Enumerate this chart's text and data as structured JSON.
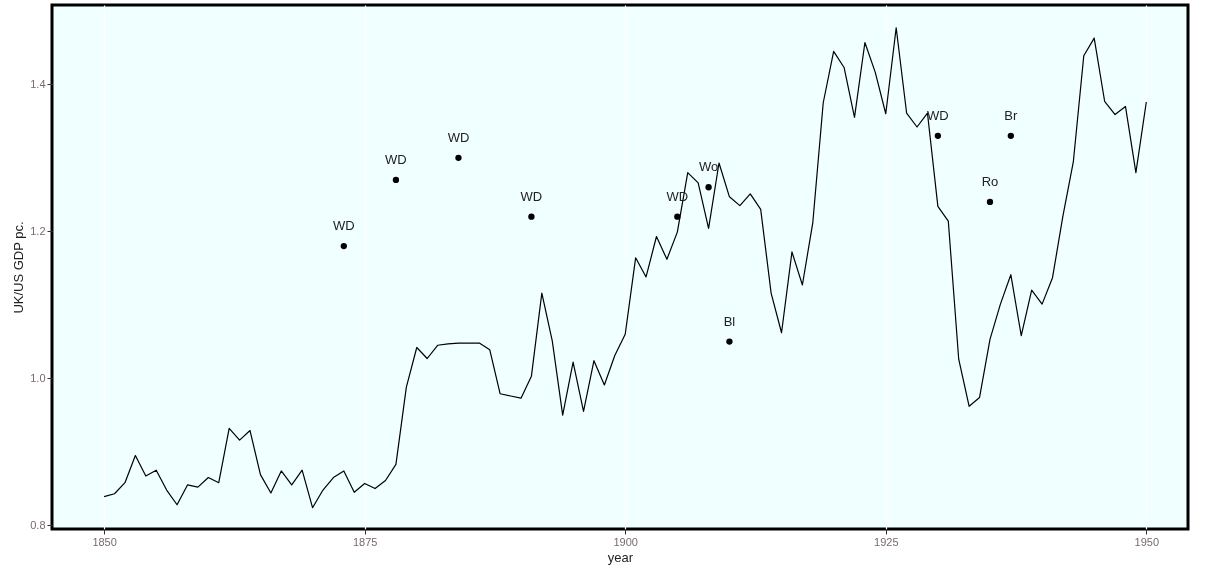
{
  "chart_data": {
    "type": "line",
    "xlabel": "year",
    "ylabel": "UK/US GDP pc.",
    "xlim": [
      1845,
      1954
    ],
    "xticks": [
      1850,
      1875,
      1900,
      1925,
      1950
    ],
    "ylim": [
      0.795,
      1.508
    ],
    "yticks": [
      0.8,
      {
        "value": 1,
        "label": "1.0"
      },
      1.2,
      1.4
    ],
    "grid": "x",
    "marker": "none",
    "line_style": "solid",
    "series": [
      {
        "color": "#000000",
        "x": [
          1850,
          1851,
          1852,
          1853,
          1854,
          1855,
          1856,
          1857,
          1858,
          1859,
          1860,
          1861,
          1862,
          1863,
          1864,
          1865,
          1866,
          1867,
          1868,
          1869,
          1870,
          1871,
          1872,
          1873,
          1874,
          1875,
          1876,
          1877,
          1878,
          1879,
          1880,
          1881,
          1882,
          1883,
          1884,
          1885,
          1886,
          1887,
          1888,
          1889,
          1890,
          1891,
          1892,
          1893,
          1894,
          1895,
          1896,
          1897,
          1898,
          1899,
          1900,
          1901,
          1902,
          1903,
          1904,
          1905,
          1906,
          1907,
          1908,
          1909,
          1910,
          1911,
          1912,
          1913,
          1914,
          1915,
          1916,
          1917,
          1918,
          1919,
          1920,
          1921,
          1922,
          1923,
          1924,
          1925,
          1926,
          1927,
          1928,
          1929,
          1930,
          1931,
          1932,
          1933,
          1934,
          1935,
          1936,
          1937,
          1938,
          1939,
          1940,
          1941,
          1942,
          1943,
          1944,
          1945,
          1946,
          1947,
          1948,
          1949,
          1950
        ],
        "values": [
          0.839,
          0.843,
          0.858,
          0.895,
          0.867,
          0.875,
          0.848,
          0.828,
          0.855,
          0.852,
          0.865,
          0.858,
          0.932,
          0.916,
          0.929,
          0.869,
          0.844,
          0.874,
          0.855,
          0.875,
          0.824,
          0.848,
          0.865,
          0.874,
          0.845,
          0.857,
          0.85,
          0.861,
          0.883,
          0.988,
          1.042,
          1.027,
          1.045,
          1.047,
          1.048,
          1.048,
          1.048,
          1.039,
          0.979,
          0.976,
          0.973,
          1.003,
          1.116,
          1.051,
          0.95,
          1.022,
          0.955,
          1.024,
          0.991,
          1.031,
          1.06,
          1.164,
          1.138,
          1.193,
          1.162,
          1.199,
          1.28,
          1.266,
          1.204,
          1.293,
          1.247,
          1.235,
          1.251,
          1.23,
          1.116,
          1.062,
          1.172,
          1.127,
          1.212,
          1.375,
          1.445,
          1.423,
          1.355,
          1.457,
          1.416,
          1.36,
          1.477,
          1.361,
          1.342,
          1.361,
          1.234,
          1.214,
          1.026,
          0.962,
          0.974,
          1.053,
          1.101,
          1.141,
          1.058,
          1.12,
          1.101,
          1.137,
          1.221,
          1.295,
          1.439,
          1.463,
          1.377,
          1.359,
          1.37,
          1.28,
          1.376
        ]
      },
      {
        "type": "scatter",
        "color": "#000000",
        "marker": "circle",
        "x": [
          1873,
          1878,
          1884,
          1891,
          1905,
          1908,
          1910,
          1930,
          1935,
          1937
        ],
        "values": [
          1.18,
          1.27,
          1.3,
          1.22,
          1.22,
          1.26,
          1.05,
          1.33,
          1.24,
          1.33
        ]
      }
    ],
    "annotations": [
      {
        "text": "WD",
        "x": 1873,
        "y": 1.18
      },
      {
        "text": "WD",
        "x": 1878,
        "y": 1.27
      },
      {
        "text": "WD",
        "x": 1884,
        "y": 1.3
      },
      {
        "text": "WD",
        "x": 1891,
        "y": 1.22
      },
      {
        "text": "WD",
        "x": 1905,
        "y": 1.22
      },
      {
        "text": "Wo",
        "x": 1908,
        "y": 1.26
      },
      {
        "text": "Bl",
        "x": 1910,
        "y": 1.05
      },
      {
        "text": "WD",
        "x": 1930,
        "y": 1.33
      },
      {
        "text": "Ro",
        "x": 1935,
        "y": 1.24
      },
      {
        "text": "Br",
        "x": 1937,
        "y": 1.33
      }
    ]
  }
}
